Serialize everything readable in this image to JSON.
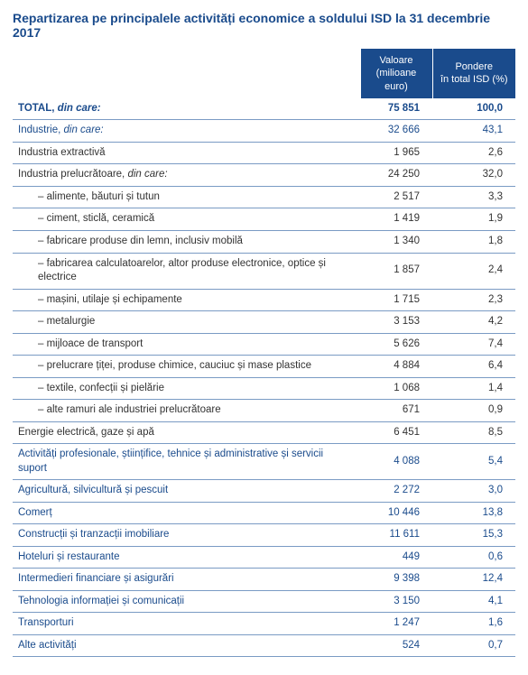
{
  "title": "Repartizarea pe principalele activități economice a soldului ISD la 31 decembrie 2017",
  "columns": {
    "value_line1": "Valoare",
    "value_line2": "(milioane euro)",
    "share_line1": "Pondere",
    "share_line2": "în total ISD (%)"
  },
  "rows": [
    {
      "style": "total",
      "label_prefix": "TOTAL,",
      "label_suffix_italic": " din care:",
      "value": "75 851",
      "share": "100,0"
    },
    {
      "style": "blue",
      "label_prefix": "Industrie,",
      "label_suffix_italic": " din care:",
      "value": "32 666",
      "share": "43,1"
    },
    {
      "style": "plain",
      "label": "Industria extractivă",
      "value": "1 965",
      "share": "2,6"
    },
    {
      "style": "plain",
      "label_prefix": "Industria prelucrătoare,",
      "label_suffix_italic": " din care:",
      "value": "24 250",
      "share": "32,0"
    },
    {
      "style": "plain",
      "indent": 1,
      "label": "– alimente, băuturi și tutun",
      "value": "2 517",
      "share": "3,3"
    },
    {
      "style": "plain",
      "indent": 1,
      "label": "– ciment, sticlă, ceramică",
      "value": "1 419",
      "share": "1,9"
    },
    {
      "style": "plain",
      "indent": 1,
      "label": "– fabricare produse din lemn, inclusiv mobilă",
      "value": "1 340",
      "share": "1,8"
    },
    {
      "style": "plain",
      "indent": 1,
      "label": "– fabricarea calculatoarelor, altor produse electronice, optice și electrice",
      "value": "1 857",
      "share": "2,4"
    },
    {
      "style": "plain",
      "indent": 1,
      "label": "– mașini, utilaje și echipamente",
      "value": "1 715",
      "share": "2,3"
    },
    {
      "style": "plain",
      "indent": 1,
      "label": "– metalurgie",
      "value": "3 153",
      "share": "4,2"
    },
    {
      "style": "plain",
      "indent": 1,
      "label": "– mijloace de transport",
      "value": "5 626",
      "share": "7,4"
    },
    {
      "style": "plain",
      "indent": 1,
      "label": "– prelucrare țiței, produse chimice, cauciuc și mase plastice",
      "value": "4 884",
      "share": "6,4"
    },
    {
      "style": "plain",
      "indent": 1,
      "label": "– textile, confecții și pielărie",
      "value": "1 068",
      "share": "1,4"
    },
    {
      "style": "plain",
      "indent": 1,
      "label": "– alte ramuri ale industriei prelucrătoare",
      "value": "671",
      "share": "0,9"
    },
    {
      "style": "plain",
      "label": "Energie electrică, gaze și apă",
      "value": "6 451",
      "share": "8,5"
    },
    {
      "style": "blue",
      "label": "Activități profesionale, științifice, tehnice și administrative și servicii suport",
      "value": "4 088",
      "share": "5,4"
    },
    {
      "style": "blue",
      "label": "Agricultură, silvicultură și pescuit",
      "value": "2 272",
      "share": "3,0"
    },
    {
      "style": "blue",
      "label": "Comerț",
      "value": "10 446",
      "share": "13,8"
    },
    {
      "style": "blue",
      "label": "Construcții și tranzacții imobiliare",
      "value": "11 611",
      "share": "15,3"
    },
    {
      "style": "blue",
      "label": "Hoteluri și restaurante",
      "value": "449",
      "share": "0,6"
    },
    {
      "style": "blue",
      "label": "Intermedieri financiare și asigurări",
      "value": "9 398",
      "share": "12,4"
    },
    {
      "style": "blue",
      "label": "Tehnologia informației și comunicații",
      "value": "3 150",
      "share": "4,1"
    },
    {
      "style": "blue",
      "label": "Transporturi",
      "value": "1 247",
      "share": "1,6"
    },
    {
      "style": "blue",
      "label": "Alte activități",
      "value": "524",
      "share": "0,7"
    }
  ],
  "colors": {
    "brand": "#1a4b8c",
    "rule": "#7a9bc4",
    "text": "#333333",
    "background": "#ffffff"
  }
}
